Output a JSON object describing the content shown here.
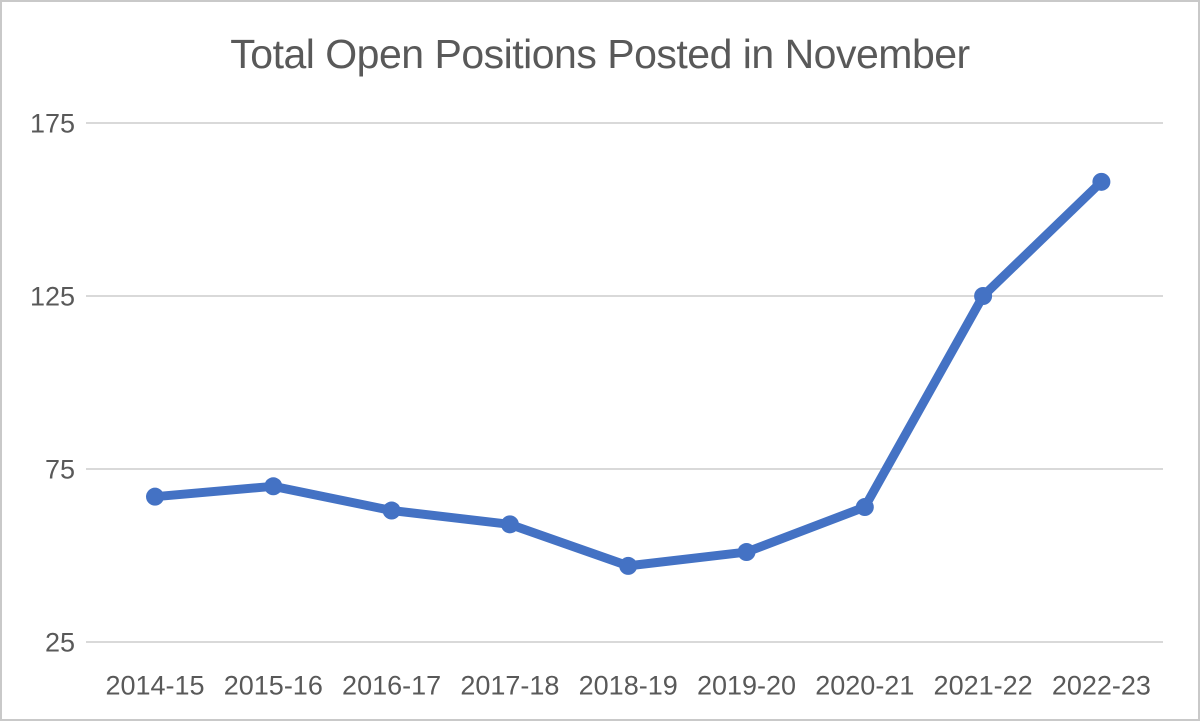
{
  "window": {
    "background": "#ffffff"
  },
  "colors": {
    "line": "#4472C4",
    "marker": "#4472C4",
    "text": "#595959",
    "gridline": "#d9d9d9",
    "border": "#c9c9c9"
  },
  "chart_data": {
    "type": "line",
    "title": "Total Open Positions Posted in November",
    "categories": [
      "2014-15",
      "2015-16",
      "2016-17",
      "2017-18",
      "2018-19",
      "2019-20",
      "2020-21",
      "2021-22",
      "2022-23"
    ],
    "series": [
      {
        "name": "Total Open Positions",
        "values": [
          67,
          70,
          63,
          59,
          47,
          51,
          64,
          125,
          158
        ]
      }
    ],
    "xlabel": "",
    "ylabel": "",
    "ylim": [
      25,
      175
    ],
    "yticks": [
      175,
      125,
      75,
      25
    ],
    "grid": true,
    "legend": "none",
    "marker_style": "circle"
  }
}
